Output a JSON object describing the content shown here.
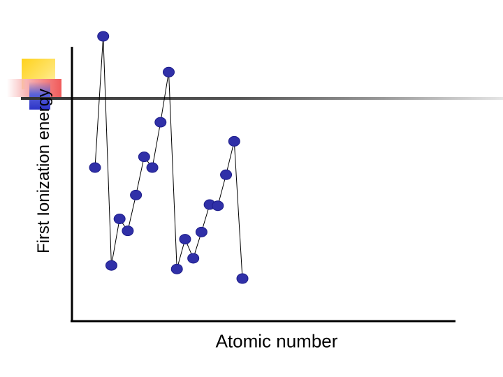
{
  "chart_data": {
    "type": "scatter",
    "title": "",
    "xlabel": "Atomic number",
    "ylabel": "First Ionization energy",
    "grid": false,
    "legend": "none",
    "xlim": [
      0,
      22
    ],
    "ylim": [
      0,
      25
    ],
    "x": [
      1,
      2,
      3,
      4,
      5,
      6,
      7,
      8,
      9,
      10,
      11,
      12,
      13,
      14,
      15,
      16,
      17,
      18,
      19
    ],
    "series": [
      {
        "values": [
          13.6,
          24.6,
          5.4,
          9.3,
          8.3,
          11.3,
          14.5,
          13.6,
          17.4,
          21.6,
          5.1,
          7.6,
          6.0,
          8.2,
          10.5,
          10.4,
          13.0,
          15.8,
          4.3
        ],
        "color": "#3030a8",
        "line_color": "#000000",
        "marker": "circle"
      }
    ],
    "colors": {
      "axis": "#000000",
      "marker": "#3030a8",
      "marker_edge": "#1c1c8a"
    }
  }
}
